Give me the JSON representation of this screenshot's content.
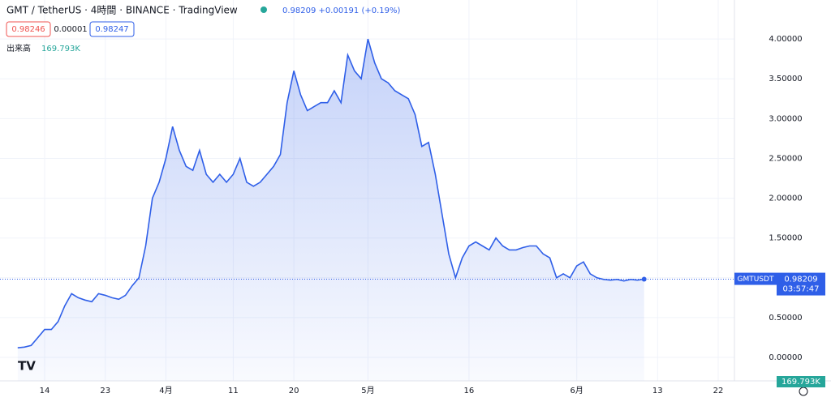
{
  "header": {
    "symbol": "GMT / TetherUS · 4時間 · BINANCE · TradingView",
    "quote": "0.98209 +0.00191 (+0.19%)",
    "bid": "0.98246",
    "spread": "0.00001",
    "ask": "0.98247",
    "volume_label": "出来高",
    "volume_value": "169.793K"
  },
  "chart_data": {
    "type": "area",
    "categories": [
      null,
      null,
      null,
      null,
      "14",
      null,
      null,
      null,
      null,
      null,
      null,
      null,
      null,
      "23",
      null,
      null,
      null,
      null,
      null,
      null,
      null,
      null,
      "4月",
      null,
      null,
      null,
      null,
      null,
      null,
      null,
      null,
      null,
      "11",
      null,
      null,
      null,
      null,
      null,
      null,
      null,
      null,
      "20",
      null,
      null,
      null,
      null,
      null,
      null,
      null,
      null,
      null,
      null,
      "5月",
      null,
      null,
      null,
      null,
      null,
      null,
      null,
      null,
      null,
      null,
      null,
      null,
      null,
      null,
      "16",
      null,
      null,
      null,
      null,
      null,
      null,
      null,
      null,
      null,
      null,
      null,
      null,
      null,
      null,
      null,
      "6月",
      null,
      null,
      null,
      null,
      null,
      null,
      null,
      null,
      null,
      null,
      null,
      "13",
      null,
      null,
      null,
      null,
      null,
      null,
      null,
      null,
      "22"
    ],
    "series": [
      {
        "name": "GMTUSDT",
        "color": "#2f5fe8",
        "values": [
          0.12,
          0.13,
          0.15,
          0.25,
          0.35,
          0.35,
          0.45,
          0.65,
          0.8,
          0.75,
          0.72,
          0.7,
          0.8,
          0.78,
          0.75,
          0.73,
          0.78,
          0.9,
          1.0,
          1.4,
          2.0,
          2.2,
          2.5,
          2.9,
          2.6,
          2.4,
          2.35,
          2.6,
          2.3,
          2.2,
          2.3,
          2.2,
          2.3,
          2.5,
          2.2,
          2.15,
          2.2,
          2.3,
          2.4,
          2.55,
          3.2,
          3.6,
          3.3,
          3.1,
          3.15,
          3.2,
          3.2,
          3.35,
          3.2,
          3.8,
          3.6,
          3.5,
          4.0,
          3.7,
          3.5,
          3.45,
          3.35,
          3.3,
          3.25,
          3.05,
          2.65,
          2.7,
          2.3,
          1.8,
          1.3,
          1.0,
          1.25,
          1.4,
          1.45,
          1.4,
          1.35,
          1.5,
          1.4,
          1.35,
          1.35,
          1.38,
          1.4,
          1.4,
          1.3,
          1.25,
          1.0,
          1.05,
          1.0,
          1.15,
          1.2,
          1.05,
          1.0,
          0.98,
          0.97,
          0.98,
          0.96,
          0.98,
          0.97,
          0.98209,
          null,
          null,
          null,
          null,
          null,
          null,
          null,
          null,
          null,
          null,
          null
        ]
      }
    ],
    "last_price": {
      "symbol": "GMTUSDT",
      "price": "0.98209",
      "countdown": "03:57:47"
    },
    "volume_axis_label": "169.793K",
    "ylim": [
      -0.295,
      4.49
    ],
    "yticks": [
      {
        "value": 0,
        "label": "0.00000"
      },
      {
        "value": 0.5,
        "label": "0.50000"
      },
      {
        "value": 1.0,
        "label": "1.00000"
      },
      {
        "value": 1.5,
        "label": "1.50000"
      },
      {
        "value": 2.0,
        "label": "2.00000"
      },
      {
        "value": 2.5,
        "label": "2.50000"
      },
      {
        "value": 3.0,
        "label": "3.00000"
      },
      {
        "value": 3.5,
        "label": "3.50000"
      },
      {
        "value": 4.0,
        "label": "4.00000"
      }
    ],
    "grid": true
  }
}
